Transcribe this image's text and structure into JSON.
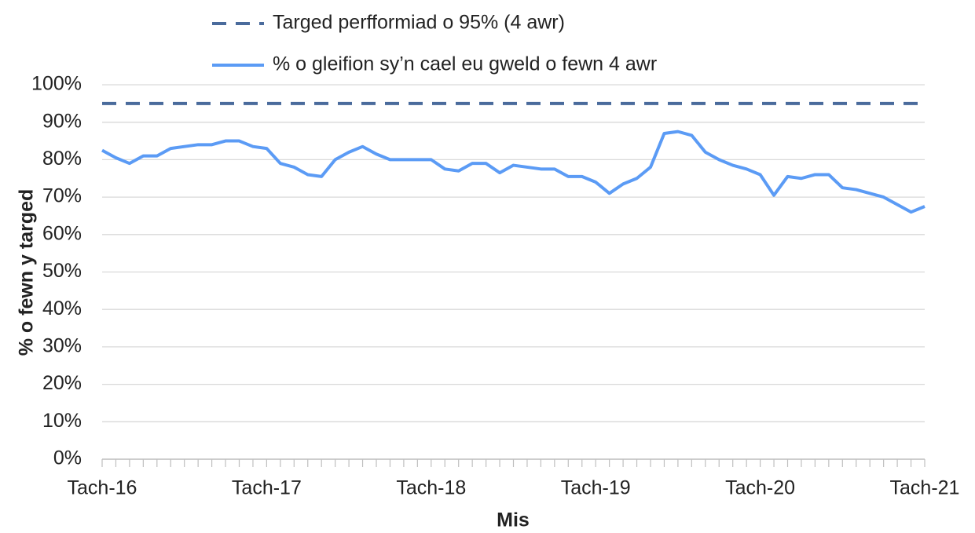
{
  "chart_data": {
    "type": "line",
    "y_label": "% o fewn y targed",
    "x_label": "Mis",
    "categories": [
      "Tach-16",
      null,
      null,
      null,
      null,
      null,
      null,
      null,
      null,
      null,
      null,
      null,
      "Tach-17",
      null,
      null,
      null,
      null,
      null,
      null,
      null,
      null,
      null,
      null,
      null,
      "Tach-18",
      null,
      null,
      null,
      null,
      null,
      null,
      null,
      null,
      null,
      null,
      null,
      "Tach-19",
      null,
      null,
      null,
      null,
      null,
      null,
      null,
      null,
      null,
      null,
      null,
      "Tach-20",
      null,
      null,
      null,
      null,
      null,
      null,
      null,
      null,
      null,
      null,
      null,
      "Tach-21"
    ],
    "series": [
      {
        "name": "Targed perfformiad o 95% (4 awr)",
        "color": "#4a6b9c",
        "dashed": true,
        "values": [
          95,
          95,
          95,
          95,
          95,
          95,
          95,
          95,
          95,
          95,
          95,
          95,
          95,
          95,
          95,
          95,
          95,
          95,
          95,
          95,
          95,
          95,
          95,
          95,
          95,
          95,
          95,
          95,
          95,
          95,
          95,
          95,
          95,
          95,
          95,
          95,
          95,
          95,
          95,
          95,
          95,
          95,
          95,
          95,
          95,
          95,
          95,
          95,
          95,
          95,
          95,
          95,
          95,
          95,
          95,
          95,
          95,
          95,
          95,
          95,
          95
        ]
      },
      {
        "name": "% o gleifion sy’n cael eu gweld o fewn 4 awr",
        "color": "#5b9bf5",
        "dashed": false,
        "values": [
          82.5,
          80.5,
          79,
          81,
          81,
          83,
          83.5,
          84,
          84,
          85,
          85,
          83.5,
          83,
          79,
          78,
          76,
          75.5,
          80,
          82,
          83.5,
          81.5,
          80,
          80,
          80,
          80,
          77.5,
          77,
          79,
          79,
          76.5,
          78.5,
          78,
          77.5,
          77.5,
          75.5,
          75.5,
          74,
          71,
          73.5,
          75,
          78,
          87,
          87.5,
          86.5,
          82,
          80,
          78.5,
          77.5,
          76,
          70.5,
          75.5,
          75,
          76,
          76,
          72.5,
          72,
          71,
          70,
          68,
          66,
          67.5
        ]
      }
    ],
    "ylim": [
      0,
      100
    ],
    "yticks": [
      {
        "value": 0,
        "label": "0%"
      },
      {
        "value": 10,
        "label": "10%"
      },
      {
        "value": 20,
        "label": "20%"
      },
      {
        "value": 30,
        "label": "30%"
      },
      {
        "value": 40,
        "label": "40%"
      },
      {
        "value": 50,
        "label": "50%"
      },
      {
        "value": 60,
        "label": "60%"
      },
      {
        "value": 70,
        "label": "70%"
      },
      {
        "value": 80,
        "label": "80%"
      },
      {
        "value": 90,
        "label": "90%"
      },
      {
        "value": 100,
        "label": "100%"
      }
    ],
    "grid": true
  }
}
